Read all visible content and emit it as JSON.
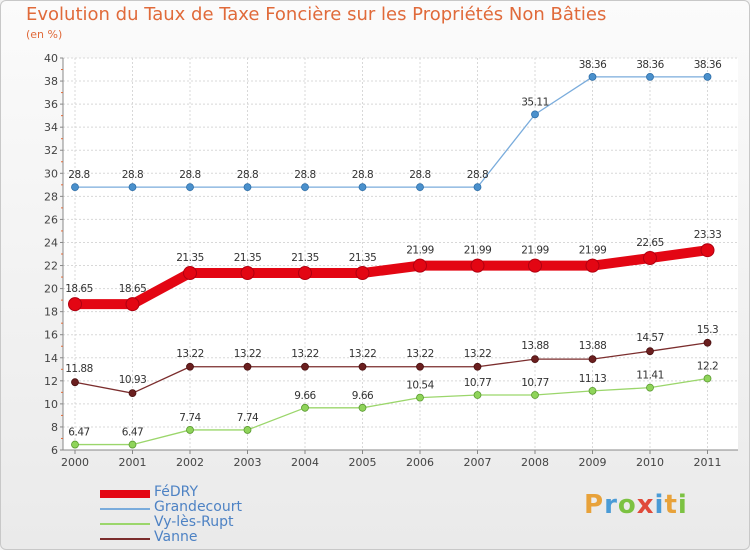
{
  "title": "Evolution du Taux de Taxe Foncière sur les Propriétés Non Bâties",
  "subtitle": "(en %)",
  "logo": "Proxiti",
  "logo_colors": [
    "#e8a23a",
    "#4a9bd6",
    "#7cc242",
    "#e04a3a",
    "#4a9bd6",
    "#e8a23a",
    "#7cc242"
  ],
  "chart_data": {
    "type": "line",
    "title": "Evolution du Taux de Taxe Foncière sur les Propriétés Non Bâties",
    "ylabel": "(en %)",
    "xlabel": "",
    "x": [
      "2000",
      "2001",
      "2002",
      "2003",
      "2004",
      "2005",
      "2006",
      "2007",
      "2008",
      "2009",
      "2010",
      "2011"
    ],
    "ylim": [
      6,
      40
    ],
    "yticks": [
      "6",
      "8",
      "10",
      "12",
      "14",
      "16",
      "18",
      "20",
      "22",
      "24",
      "26",
      "28",
      "30",
      "32",
      "34",
      "36",
      "38",
      "40"
    ],
    "grid": true,
    "legend_position": "bottom-left",
    "series": [
      {
        "name": "FéDRY",
        "color": "#e30613",
        "values": [
          18.65,
          18.65,
          21.35,
          21.35,
          21.35,
          21.35,
          21.99,
          21.99,
          21.99,
          21.99,
          22.65,
          23.33
        ],
        "labels": [
          "18.65",
          "18.65",
          "21.35",
          "21.35",
          "21.35",
          "21.35",
          "21.99",
          "21.99",
          "21.99",
          "21.99",
          "22.65",
          "23.33"
        ]
      },
      {
        "name": "Grandecourt",
        "color": "#7aacdc",
        "values": [
          28.8,
          28.8,
          28.8,
          28.8,
          28.8,
          28.8,
          28.8,
          28.8,
          35.11,
          38.36,
          38.36,
          38.36
        ],
        "labels": [
          "28.8",
          "28.8",
          "28.8",
          "28.8",
          "28.8",
          "28.8",
          "28.8",
          "28.8",
          "35.11",
          "38.36",
          "38.36",
          "38.36"
        ]
      },
      {
        "name": "Vy-lès-Rupt",
        "color": "#9bd66b",
        "values": [
          6.47,
          6.47,
          7.74,
          7.74,
          9.66,
          9.66,
          10.54,
          10.77,
          10.77,
          11.13,
          11.41,
          12.2
        ],
        "labels": [
          "6.47",
          "6.47",
          "7.74",
          "7.74",
          "9.66",
          "9.66",
          "10.54",
          "10.77",
          "10.77",
          "11.13",
          "11.41",
          "12.2"
        ]
      },
      {
        "name": "Vanne",
        "color": "#7b2d2d",
        "values": [
          11.88,
          10.93,
          13.22,
          13.22,
          13.22,
          13.22,
          13.22,
          13.22,
          13.88,
          13.88,
          14.57,
          15.3
        ],
        "labels": [
          "11.88",
          "10.93",
          "13.22",
          "13.22",
          "13.22",
          "13.22",
          "13.22",
          "13.22",
          "13.88",
          "13.88",
          "14.57",
          "15.3"
        ]
      }
    ]
  }
}
